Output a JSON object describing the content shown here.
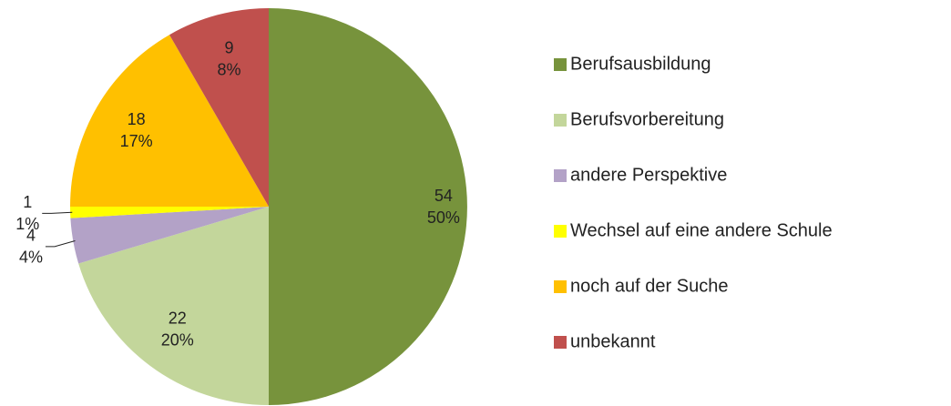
{
  "chart_data": {
    "type": "pie",
    "categories": [
      "Berufsausbildung",
      "Berufsvorbereitung",
      "andere Perspektive",
      "Wechsel auf eine andere Schule",
      "noch auf der Suche",
      "unbekannt"
    ],
    "values": [
      54,
      22,
      4,
      1,
      18,
      9
    ],
    "percent_labels": [
      "50%",
      "20%",
      "4%",
      "1%",
      "17%",
      "8%"
    ],
    "colors": [
      "#77933c",
      "#c3d69b",
      "#b3a2c7",
      "#ffff00",
      "#ffc000",
      "#c0504d"
    ],
    "legend": "right"
  }
}
